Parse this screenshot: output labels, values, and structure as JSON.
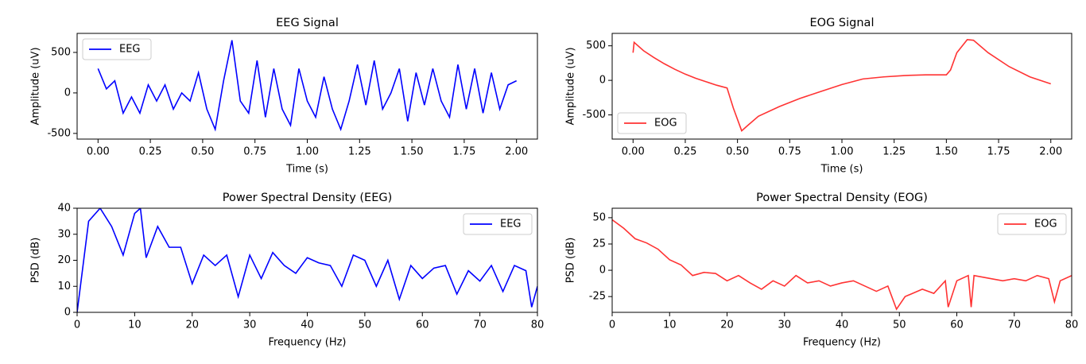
{
  "chart_data": [
    {
      "type": "line",
      "title": "EEG Signal",
      "x_label": "Time (s)",
      "y_label": "Amplitude (uV)",
      "x": [
        0,
        0.04,
        0.08,
        0.12,
        0.16,
        0.2,
        0.24,
        0.28,
        0.32,
        0.36,
        0.4,
        0.44,
        0.48,
        0.52,
        0.56,
        0.6,
        0.64,
        0.68,
        0.72,
        0.76,
        0.8,
        0.84,
        0.88,
        0.92,
        0.96,
        1.0,
        1.04,
        1.08,
        1.12,
        1.16,
        1.2,
        1.24,
        1.28,
        1.32,
        1.36,
        1.4,
        1.44,
        1.48,
        1.52,
        1.56,
        1.6,
        1.64,
        1.68,
        1.72,
        1.76,
        1.8,
        1.84,
        1.88,
        1.92,
        1.96,
        2.0
      ],
      "series": [
        {
          "name": "EEG",
          "color": "#0000ff",
          "values": [
            300,
            50,
            150,
            -250,
            -50,
            -250,
            100,
            -100,
            100,
            -200,
            0,
            -100,
            250,
            -200,
            -450,
            150,
            650,
            -100,
            -250,
            400,
            -300,
            300,
            -200,
            -400,
            300,
            -100,
            -300,
            200,
            -200,
            -450,
            -100,
            350,
            -150,
            400,
            -200,
            0,
            300,
            -350,
            250,
            -150,
            300,
            -100,
            -300,
            350,
            -200,
            300,
            -250,
            250,
            -200,
            100,
            150
          ]
        }
      ],
      "xlim": [
        -0.1,
        2.1
      ],
      "ylim": [
        -570,
        735
      ],
      "xticks": [
        {
          "value": 0,
          "label": "0.00"
        },
        {
          "value": 0.25,
          "label": "0.25"
        },
        {
          "value": 0.5,
          "label": "0.50"
        },
        {
          "value": 0.75,
          "label": "0.75"
        },
        {
          "value": 1,
          "label": "1.00"
        },
        {
          "value": 1.25,
          "label": "1.25"
        },
        {
          "value": 1.5,
          "label": "1.50"
        },
        {
          "value": 1.75,
          "label": "1.75"
        },
        {
          "value": 2,
          "label": "2.00"
        }
      ],
      "yticks": [
        -500,
        0,
        500
      ],
      "legend": "upper left"
    },
    {
      "type": "line",
      "title": "EOG Signal",
      "x_label": "Time (s)",
      "y_label": "Amplitude (uV)",
      "x": [
        0,
        0.005,
        0.05,
        0.1,
        0.15,
        0.2,
        0.25,
        0.3,
        0.35,
        0.4,
        0.45,
        0.48,
        0.52,
        0.55,
        0.6,
        0.7,
        0.8,
        0.9,
        1.0,
        1.1,
        1.2,
        1.3,
        1.4,
        1.5,
        1.52,
        1.55,
        1.6,
        1.63,
        1.7,
        1.8,
        1.9,
        2.0
      ],
      "series": [
        {
          "name": "EOG",
          "color": "#ff3333",
          "values": [
            400,
            550,
            430,
            330,
            240,
            160,
            90,
            30,
            -20,
            -70,
            -110,
            -400,
            -730,
            -650,
            -520,
            -380,
            -260,
            -160,
            -60,
            20,
            50,
            70,
            80,
            80,
            150,
            400,
            590,
            580,
            400,
            200,
            50,
            -50
          ]
        }
      ],
      "xlim": [
        -0.1,
        2.1
      ],
      "ylim": [
        -850,
        680
      ],
      "xticks": [
        {
          "value": 0,
          "label": "0.00"
        },
        {
          "value": 0.25,
          "label": "0.25"
        },
        {
          "value": 0.5,
          "label": "0.50"
        },
        {
          "value": 0.75,
          "label": "0.75"
        },
        {
          "value": 1,
          "label": "1.00"
        },
        {
          "value": 1.25,
          "label": "1.25"
        },
        {
          "value": 1.5,
          "label": "1.50"
        },
        {
          "value": 1.75,
          "label": "1.75"
        },
        {
          "value": 2,
          "label": "2.00"
        }
      ],
      "yticks": [
        -500,
        0,
        500
      ],
      "legend": "lower left"
    },
    {
      "type": "line",
      "title": "Power Spectral Density (EEG)",
      "x_label": "Frequency (Hz)",
      "y_label": "PSD (dB)",
      "x": [
        0,
        2,
        4,
        6,
        8,
        10,
        11,
        12,
        14,
        16,
        18,
        20,
        22,
        24,
        26,
        28,
        30,
        32,
        34,
        36,
        38,
        40,
        42,
        44,
        46,
        48,
        50,
        52,
        54,
        56,
        58,
        60,
        62,
        64,
        66,
        68,
        70,
        72,
        74,
        76,
        78,
        79,
        80
      ],
      "series": [
        {
          "name": "EEG",
          "color": "#0000ff",
          "values": [
            0,
            35,
            40,
            33,
            22,
            38,
            40,
            21,
            33,
            25,
            25,
            11,
            22,
            18,
            22,
            6,
            22,
            13,
            23,
            18,
            15,
            21,
            19,
            18,
            10,
            22,
            20,
            10,
            20,
            5,
            18,
            13,
            17,
            18,
            7,
            16,
            12,
            18,
            8,
            18,
            16,
            2,
            10
          ]
        }
      ],
      "xlim": [
        0,
        80
      ],
      "ylim": [
        0,
        40
      ],
      "xticks": [
        0,
        10,
        20,
        30,
        40,
        50,
        60,
        70,
        80
      ],
      "yticks": [
        0,
        10,
        20,
        30,
        40
      ],
      "legend": "upper right"
    },
    {
      "type": "line",
      "title": "Power Spectral Density (EOG)",
      "x_label": "Frequency (Hz)",
      "y_label": "PSD (dB)",
      "x": [
        0,
        2,
        4,
        6,
        8,
        10,
        12,
        14,
        16,
        18,
        20,
        22,
        24,
        26,
        28,
        30,
        32,
        34,
        36,
        38,
        40,
        42,
        44,
        46,
        48,
        49.5,
        51,
        54,
        56,
        58,
        58.5,
        60,
        62,
        62.5,
        63,
        66,
        68,
        70,
        72,
        74,
        76,
        77,
        78,
        80
      ],
      "series": [
        {
          "name": "EOG",
          "color": "#ff3333",
          "values": [
            48,
            40,
            30,
            26,
            20,
            10,
            5,
            -5,
            -2,
            -3,
            -10,
            -5,
            -12,
            -18,
            -10,
            -15,
            -5,
            -12,
            -10,
            -15,
            -12,
            -10,
            -15,
            -20,
            -15,
            -37,
            -25,
            -18,
            -22,
            -10,
            -35,
            -10,
            -5,
            -35,
            -5,
            -8,
            -10,
            -8,
            -10,
            -5,
            -8,
            -30,
            -10,
            -5
          ]
        }
      ],
      "xlim": [
        0,
        80
      ],
      "ylim": [
        -40,
        59
      ],
      "xticks": [
        0,
        10,
        20,
        30,
        40,
        50,
        60,
        70,
        80
      ],
      "yticks": [
        -25,
        0,
        25,
        50
      ],
      "legend": "upper right"
    }
  ]
}
